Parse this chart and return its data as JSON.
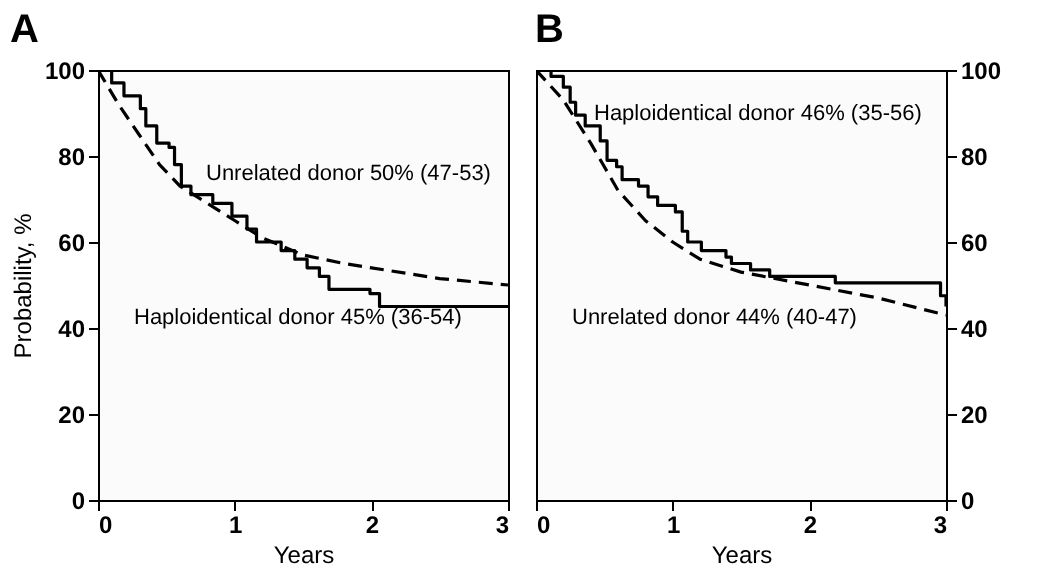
{
  "chart_data": [
    {
      "type": "line",
      "title": "A",
      "xlabel": "Years",
      "ylabel": "Probability, %",
      "xlim": [
        0,
        3
      ],
      "xticks": [
        0,
        1,
        2,
        3
      ],
      "ylim": [
        0,
        100
      ],
      "yticks": [
        0,
        20,
        40,
        60,
        80,
        100
      ],
      "grid": false,
      "series": [
        {
          "type": "step",
          "color": "#000000",
          "line_style": "solid",
          "x": [
            0,
            0.1,
            0.19,
            0.31,
            0.35,
            0.43,
            0.52,
            0.56,
            0.61,
            0.68,
            0.84,
            0.98,
            1.09,
            1.16,
            1.34,
            1.44,
            1.53,
            1.62,
            1.69,
            1.99,
            2.06,
            3
          ],
          "values": [
            100,
            97,
            94,
            91,
            87,
            83,
            82,
            78,
            73,
            71,
            69,
            66,
            63,
            60,
            58,
            56,
            54,
            52,
            49,
            48,
            45,
            45
          ]
        },
        {
          "color": "#000000",
          "line_style": "dashed",
          "x": [
            0,
            0.15,
            0.3,
            0.45,
            0.6,
            0.8,
            1.0,
            1.2,
            1.5,
            1.8,
            2.1,
            2.5,
            3
          ],
          "values": [
            100,
            92,
            85,
            78,
            73,
            69,
            65,
            61,
            57,
            55,
            53.5,
            51.5,
            50
          ]
        }
      ],
      "annotations": [
        "Unrelated donor  50% (47-53)",
        "Haploidentical donor  45% (36-54)"
      ]
    },
    {
      "type": "line",
      "title": "B",
      "xlabel": "Years",
      "xlim": [
        0,
        3
      ],
      "xticks": [
        0,
        1,
        2,
        3
      ],
      "ylim": [
        0,
        100
      ],
      "yticks": [
        0,
        20,
        40,
        60,
        80,
        100
      ],
      "grid": false,
      "series": [
        {
          "type": "step",
          "color": "#000000",
          "line_style": "solid",
          "x": [
            0,
            0.11,
            0.2,
            0.25,
            0.29,
            0.36,
            0.47,
            0.52,
            0.59,
            0.63,
            0.75,
            0.82,
            0.89,
            1.02,
            1.07,
            1.11,
            1.21,
            1.39,
            1.43,
            1.57,
            1.71,
            2.19,
            2.96,
            3
          ],
          "values": [
            100,
            98.5,
            96,
            92.5,
            89.5,
            87,
            83.5,
            79,
            77.5,
            74.5,
            73,
            70.5,
            68.5,
            67,
            62.5,
            60,
            58,
            56.5,
            55,
            53.5,
            52,
            50.5,
            47.5,
            45
          ]
        },
        {
          "color": "#000000",
          "line_style": "dashed",
          "x": [
            0,
            0.2,
            0.4,
            0.6,
            0.8,
            1.0,
            1.2,
            1.5,
            2.0,
            2.5,
            3
          ],
          "values": [
            100,
            93,
            83,
            72,
            65,
            60,
            56,
            53,
            50,
            47,
            43
          ]
        }
      ],
      "annotations": [
        "Haploidentical donor  46% (35-56)",
        "Unrelated donor  44% (40-47)"
      ]
    }
  ]
}
